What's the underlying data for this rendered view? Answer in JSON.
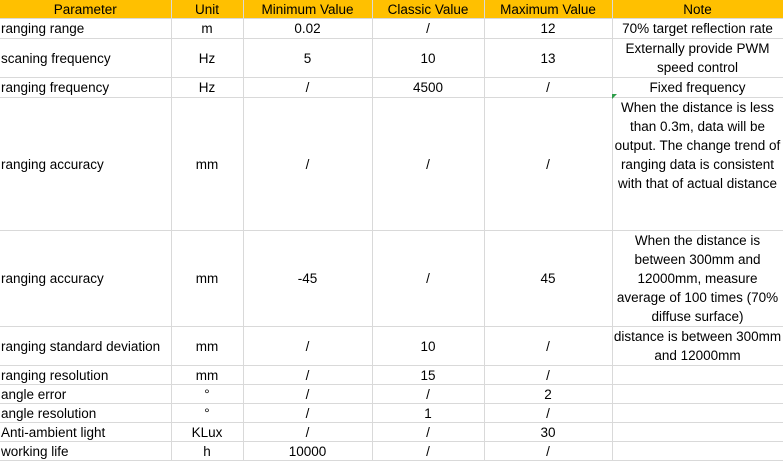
{
  "headers": [
    "Parameter",
    "Unit",
    "Minimum Value",
    "Classic Value",
    "Maximum Value",
    "Note"
  ],
  "rows": [
    {
      "param": "ranging range",
      "unit": "m",
      "min": "0.02",
      "classic": "/",
      "max": "12",
      "note": "70% target reflection rate"
    },
    {
      "param": "scaning frequency",
      "unit": "Hz",
      "min": "5",
      "classic": "10",
      "max": "13",
      "note": "Externally provide PWM speed control"
    },
    {
      "param": "ranging frequency",
      "unit": "Hz",
      "min": "/",
      "classic": "4500",
      "max": "/",
      "note": "Fixed frequency"
    },
    {
      "param": "ranging accuracy",
      "unit": "mm",
      "min": "/",
      "classic": "/",
      "max": "/",
      "note": "When the distance is less than 0.3m, data will be output. The change trend of ranging data is consistent with that of actual distance"
    },
    {
      "param": "ranging accuracy",
      "unit": "mm",
      "min": "-45",
      "classic": "/",
      "max": "45",
      "note": "When the distance is between 300mm and 12000mm, measure average of 100 times (70% diffuse surface)"
    },
    {
      "param": "ranging standard deviation",
      "unit": "mm",
      "min": "/",
      "classic": "10",
      "max": "/",
      "note": "distance is between 300mm and 12000mm"
    },
    {
      "param": "ranging resolution",
      "unit": "mm",
      "min": "/",
      "classic": "15",
      "max": "/",
      "note": ""
    },
    {
      "param": "angle error",
      "unit": "°",
      "min": "/",
      "classic": "/",
      "max": "2",
      "note": ""
    },
    {
      "param": "angle resolution",
      "unit": "°",
      "min": "/",
      "classic": "1",
      "max": "/",
      "note": ""
    },
    {
      "param": "Anti-ambient light",
      "unit": "KLux",
      "min": "/",
      "classic": "/",
      "max": "30",
      "note": ""
    },
    {
      "param": "working life",
      "unit": "h",
      "min": "10000",
      "classic": "/",
      "max": "/",
      "note": ""
    }
  ]
}
